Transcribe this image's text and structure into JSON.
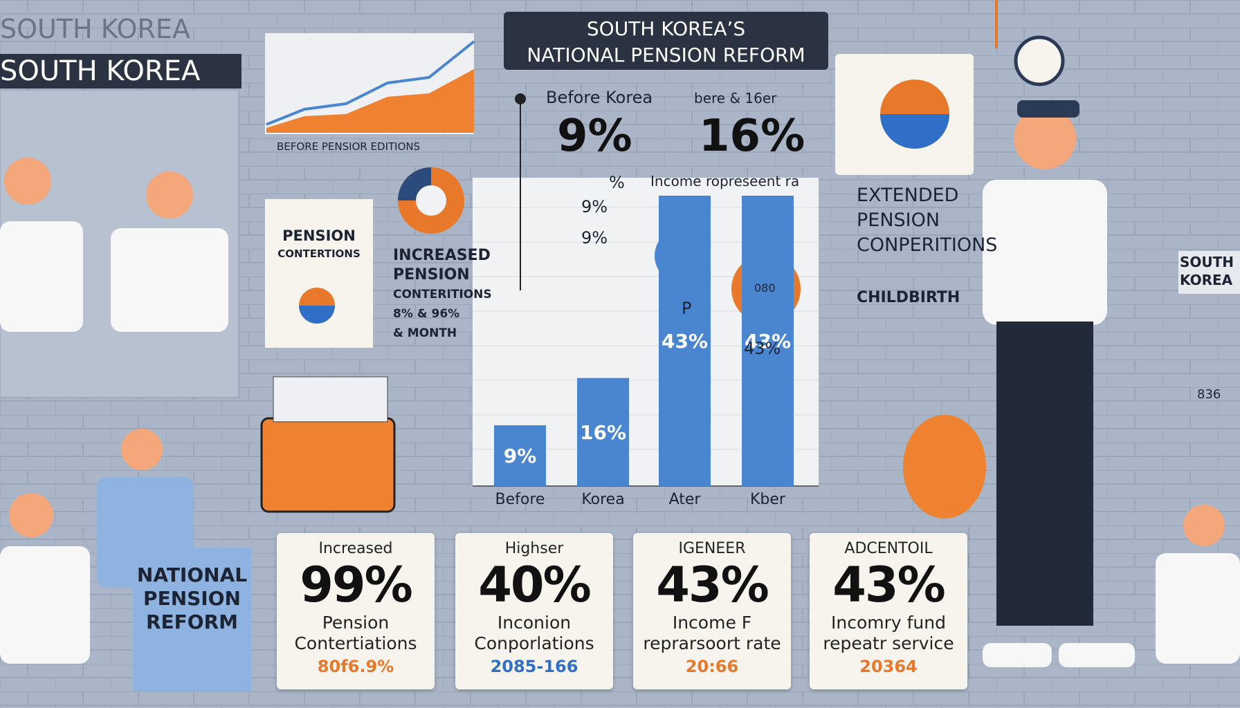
{
  "header": {
    "faint_title": "SOUTH KOREA",
    "banner": "SOUTH KOREA",
    "title_line1": "SOUTH KOREA’S",
    "title_line2": "NATIONAL PENSION REFORM"
  },
  "mini_chart": {
    "label": "BEFORE  PENSIOR EDITIONS"
  },
  "left_card": {
    "line1": "PENSION",
    "line2": "CONTERTIONS"
  },
  "increased_note": [
    "INCREASED",
    "PENSION",
    "CONTERITIONS",
    "8% & 96%",
    "& MONTH"
  ],
  "comparison": {
    "before_label": "Before Korea",
    "after_label": "bere & 16er",
    "before_value": "9%",
    "after_value": "16%"
  },
  "chart_data": {
    "type": "bar",
    "subtitle": "Income ropreseent ra",
    "categories": [
      "Before",
      "Korea",
      "Ater",
      "Kber"
    ],
    "values": [
      9,
      16,
      43,
      43
    ],
    "value_labels": [
      "9%",
      "16%",
      "43%",
      "43%"
    ],
    "color": "#4a86cf",
    "annotations": [
      "%",
      "9%",
      "9%",
      "P",
      "43%",
      "080"
    ]
  },
  "right_notes": [
    "EXTENDED",
    "PENSION",
    "CONPERITIONS",
    "CHILDBIRTH"
  ],
  "side_box": [
    "SOUTH",
    "KOREA"
  ],
  "side_small": "836",
  "blue_panel": [
    "NATIONAL",
    "PENSION",
    "REFORM"
  ],
  "cards": [
    {
      "header": "Increased",
      "big": "99%",
      "line1": "Pension",
      "line2": "Contertiations",
      "small": "80f6.9%",
      "color": "#e8782a"
    },
    {
      "header": "Highser",
      "big": "40%",
      "line1": "Inconion",
      "line2": "Conporlations",
      "small": "2085-166",
      "color": "#2f6fc7"
    },
    {
      "header": "IGENEER",
      "big": "43%",
      "line1": "Income F",
      "line2": "reprarsoort rate",
      "small": "20:66",
      "color": "#e8782a"
    },
    {
      "header": "ADCENTOIL",
      "big": "43%",
      "line1": "Incomry fund",
      "line2": "repeatr service",
      "small": "20364",
      "color": "#e8782a"
    }
  ]
}
